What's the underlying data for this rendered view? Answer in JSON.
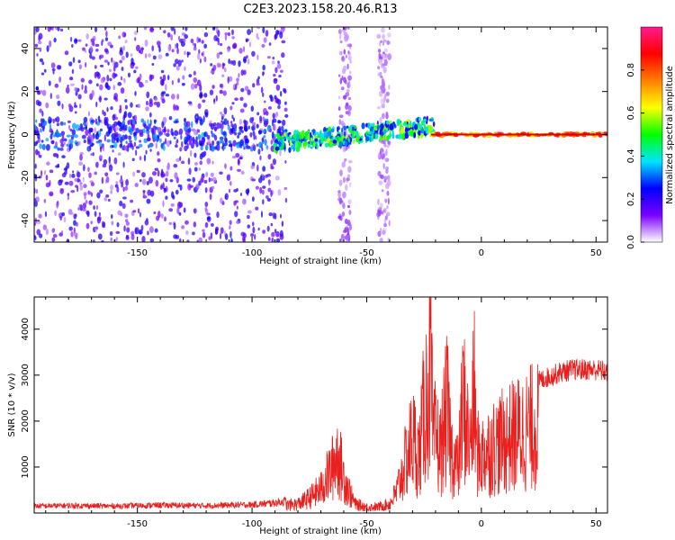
{
  "title": "C2E3.2023.158.20.46.R13",
  "chart_data": [
    {
      "type": "heatmap",
      "xlabel": "Height of straight line (km)",
      "ylabel": "Frequency (Hz)",
      "xlim": [
        -195,
        55
      ],
      "ylim": [
        -50,
        50
      ],
      "x_ticks": [
        -150,
        -100,
        -50,
        0,
        50
      ],
      "y_ticks": [
        -40,
        -20,
        0,
        20,
        40
      ],
      "colorbar": {
        "label": "Normalized spectral amplitude",
        "range": [
          0,
          1
        ],
        "ticks": [
          0.0,
          0.2,
          0.4,
          0.6,
          0.8
        ],
        "colormap": [
          "#ffffff",
          "#7b00ff",
          "#0000ff",
          "#00e5ff",
          "#00ff00",
          "#ffff00",
          "#ff8000",
          "#ff0000",
          "#ff1a8c"
        ]
      },
      "regions": [
        {
          "x_range": [
            -195,
            -85
          ],
          "y_range": [
            -50,
            50
          ],
          "amplitude": [
            0.05,
            0.25
          ],
          "pattern": "scattered"
        },
        {
          "x_range": [
            -62,
            -57
          ],
          "y_range": [
            -50,
            50
          ],
          "amplitude": [
            0.03,
            0.12
          ],
          "pattern": "vertical band"
        },
        {
          "x_range": [
            -45,
            -40
          ],
          "y_range": [
            -50,
            50
          ],
          "amplitude": [
            0.03,
            0.1
          ],
          "pattern": "vertical band"
        },
        {
          "x_range": [
            -90,
            -20
          ],
          "y_range": [
            -6,
            9
          ],
          "amplitude": [
            0.2,
            0.6
          ],
          "pattern": "rising streak"
        },
        {
          "x_range": [
            -22,
            55
          ],
          "y_range": [
            -1,
            1
          ],
          "amplitude": [
            0.6,
            0.95
          ],
          "pattern": "flat line at 0 Hz"
        }
      ]
    },
    {
      "type": "line",
      "xlabel": "Height of straight line (km)",
      "ylabel": "SNR (10 * v/v)",
      "xlim": [
        -195,
        55
      ],
      "ylim": [
        0,
        4700
      ],
      "x_ticks": [
        -150,
        -100,
        -50,
        0,
        50
      ],
      "y_ticks": [
        1000,
        2000,
        3000,
        4000
      ],
      "color": "#e8201e",
      "series": [
        {
          "x": [
            -195,
            -180,
            -160,
            -140,
            -120,
            -100,
            -90,
            -80,
            -75,
            -70,
            -68,
            -65,
            -63,
            -60,
            -57,
            -55,
            -50,
            -45,
            -40,
            -37,
            -35,
            -32,
            -30,
            -27,
            -25,
            -22,
            -21,
            -20,
            -18,
            -15,
            -13,
            -12,
            -10,
            -8,
            -5,
            -3,
            -2,
            0,
            5,
            10,
            15,
            20,
            25,
            30,
            35,
            40,
            45,
            50,
            55
          ],
          "y": [
            150,
            160,
            150,
            170,
            160,
            180,
            220,
            300,
            500,
            800,
            1100,
            1500,
            2000,
            1200,
            600,
            300,
            200,
            200,
            300,
            700,
            1200,
            2000,
            2500,
            1900,
            3400,
            4700,
            2200,
            2600,
            2000,
            3500,
            2000,
            1800,
            1500,
            3800,
            2200,
            4000,
            2000,
            1900,
            2200,
            2400,
            2600,
            2800,
            2950,
            3050,
            3150,
            3200,
            3200,
            3200,
            3150
          ]
        }
      ]
    }
  ]
}
